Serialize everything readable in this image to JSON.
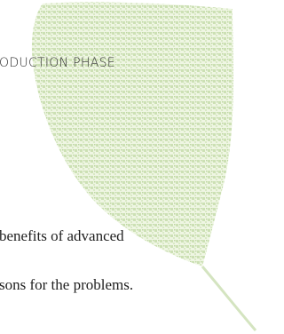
{
  "heading": "ODUCTION PHASE",
  "lines": [
    "benefits of advanced",
    "sons for the problems."
  ]
}
